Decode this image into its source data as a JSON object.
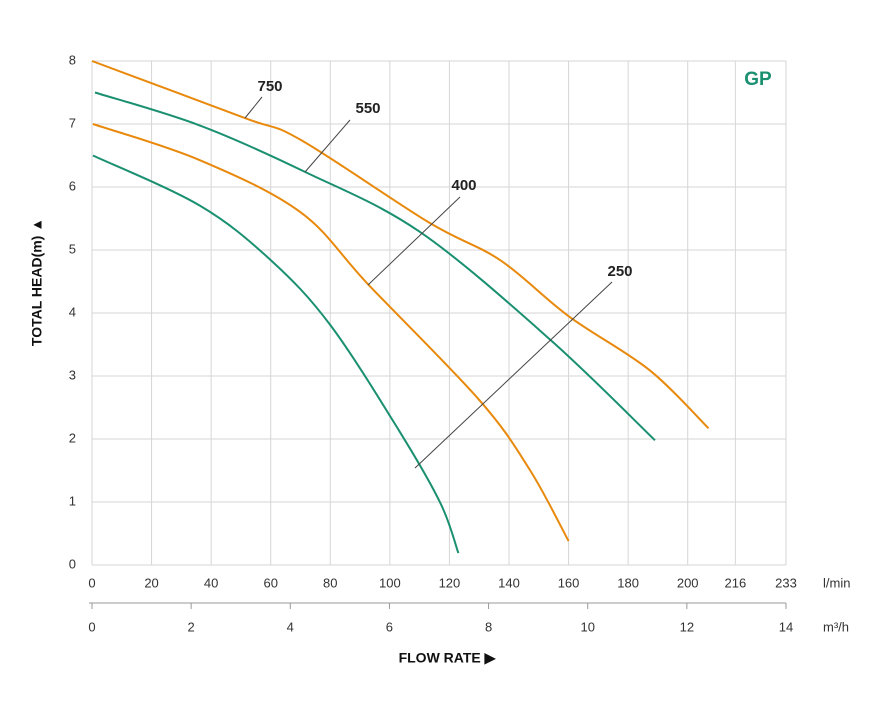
{
  "chart_data": {
    "type": "line",
    "brand": "GP",
    "ylabel": "TOTAL HEAD(m) ▲",
    "xlabel": "FLOW RATE ▶",
    "x2unit": "l/min",
    "xunit": "m³/h",
    "ylim": [
      0,
      8
    ],
    "yticks": [
      0,
      1,
      2,
      3,
      4,
      5,
      6,
      7,
      8
    ],
    "xlim": [
      0,
      14
    ],
    "xticks": [
      0,
      2,
      4,
      6,
      8,
      10,
      12,
      14
    ],
    "x2lim": [
      0,
      233
    ],
    "x2ticks": [
      0,
      20,
      40,
      60,
      80,
      100,
      120,
      140,
      160,
      180,
      200,
      216,
      233
    ],
    "grid": true,
    "series": [
      {
        "name": "750",
        "color": "#e8890c",
        "x": [
          0,
          51,
          70,
          113,
          137,
          160,
          187,
          207
        ],
        "values": [
          8,
          7.1,
          6.75,
          5.44,
          4.84,
          3.95,
          3.1,
          2.17
        ]
      },
      {
        "name": "550",
        "color": "#1a9070",
        "x": [
          1,
          36,
          71.5,
          110,
          154,
          189
        ],
        "values": [
          7.5,
          6.98,
          6.24,
          5.29,
          3.57,
          1.98
        ]
      },
      {
        "name": "400",
        "color": "#e8890c",
        "x": [
          0.3,
          36,
          70,
          93,
          130,
          147,
          160
        ],
        "values": [
          7.0,
          6.43,
          5.6,
          4.44,
          2.62,
          1.51,
          0.38
        ]
      },
      {
        "name": "250",
        "color": "#1a9070",
        "x": [
          0.3,
          36,
          60,
          80,
          103,
          117,
          123
        ],
        "values": [
          6.5,
          5.71,
          4.84,
          3.81,
          2.14,
          0.98,
          0.19
        ]
      }
    ]
  }
}
